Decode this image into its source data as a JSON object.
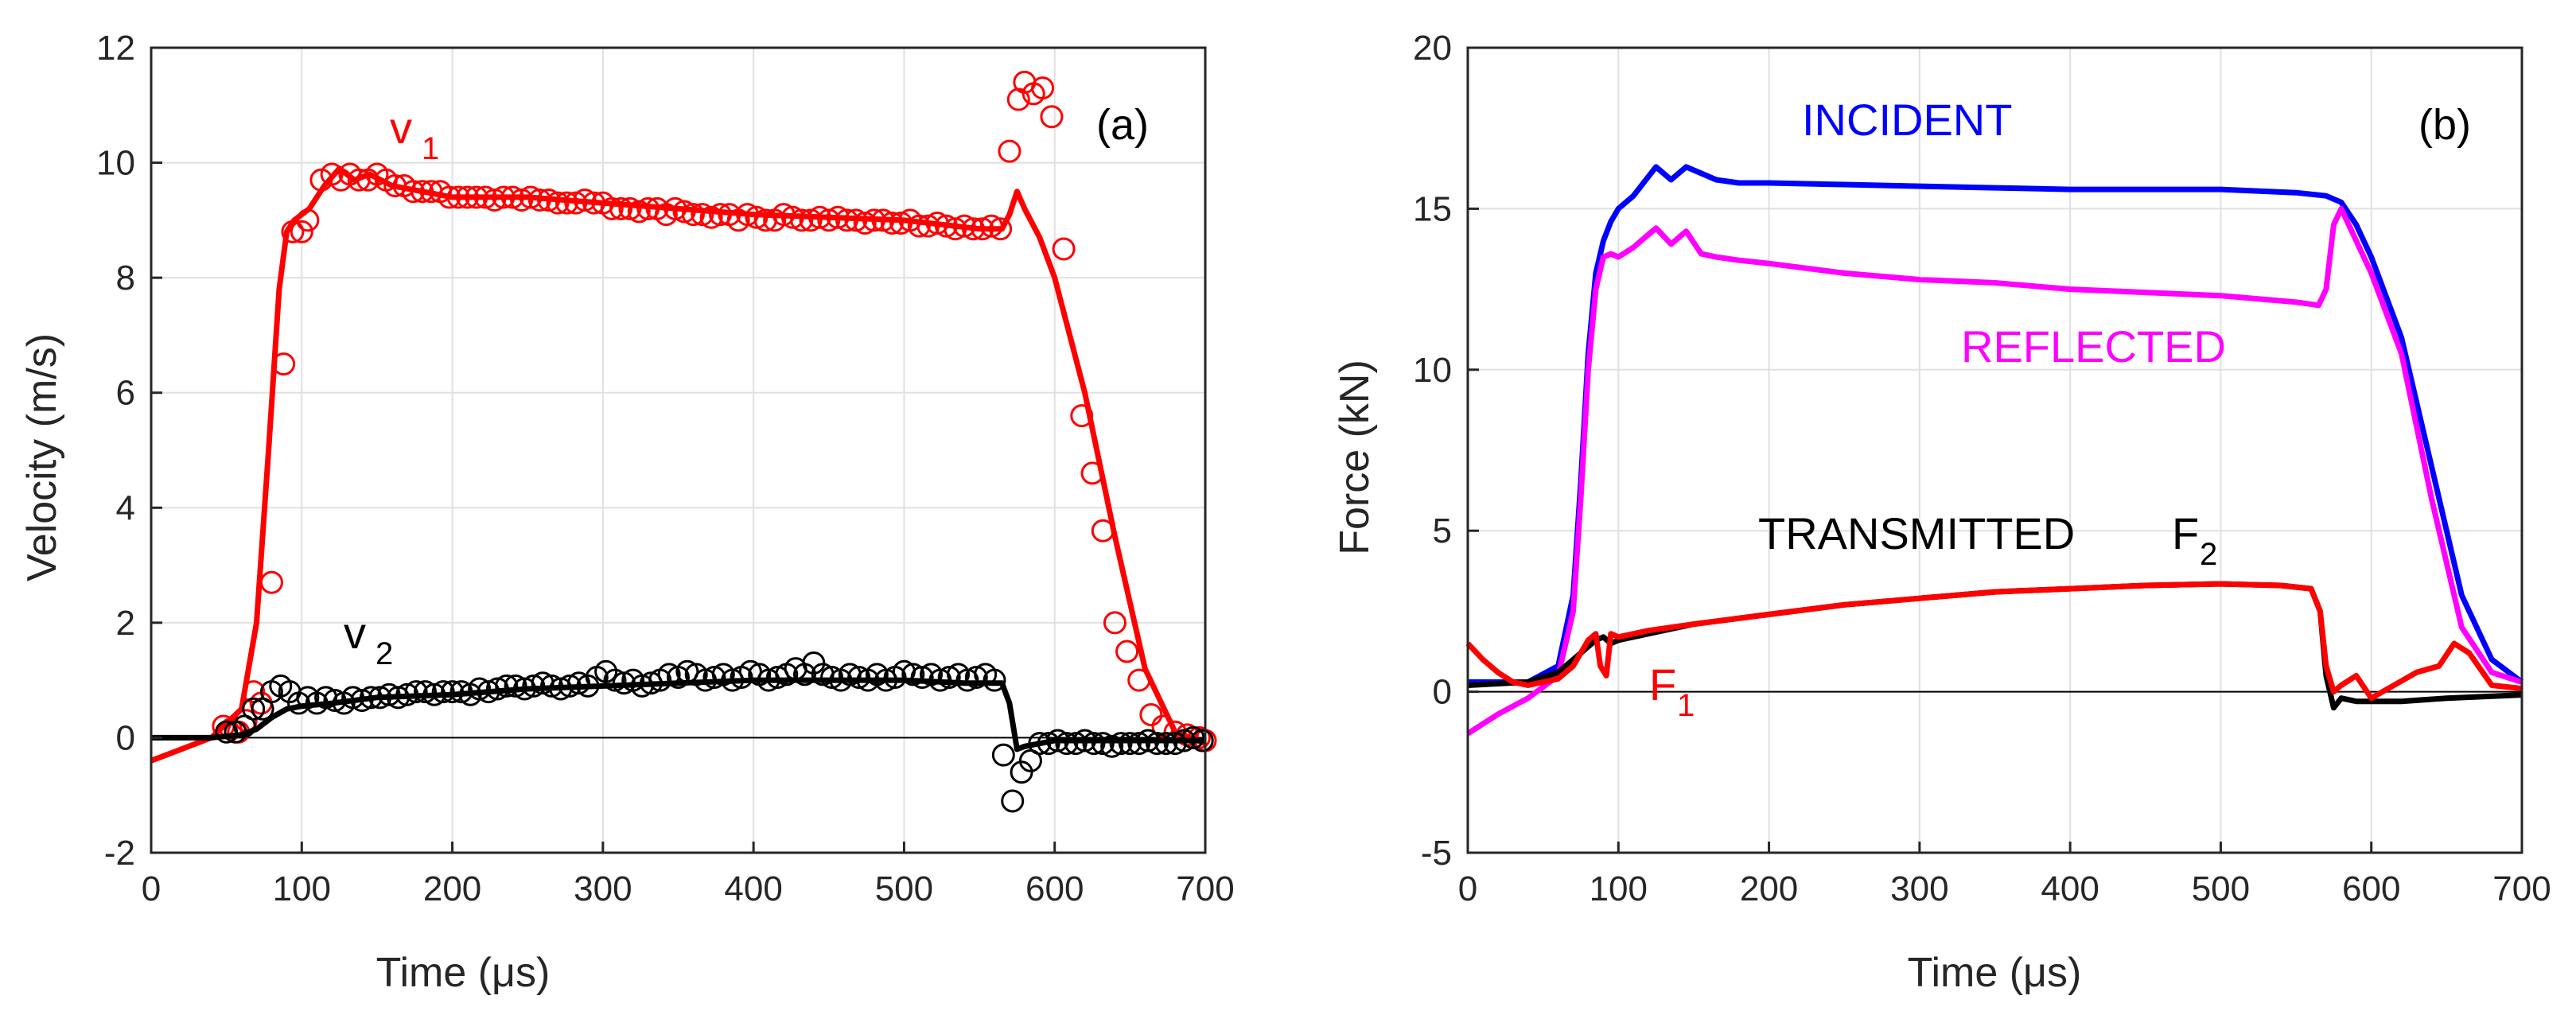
{
  "chart_data": [
    {
      "type": "line",
      "panel_label": "(a)",
      "xlabel": "Time (μs)",
      "ylabel": "Velocity (m/s)",
      "xlim": [
        0,
        700
      ],
      "ylim": [
        -2,
        12
      ],
      "xticks": [
        0,
        100,
        200,
        300,
        400,
        500,
        600,
        700
      ],
      "yticks": [
        -2,
        0,
        2,
        4,
        6,
        8,
        10,
        12
      ],
      "grid": true,
      "series": [
        {
          "label_main": "v",
          "label_sub": "1",
          "color": "#ff0000",
          "style": "line",
          "x": [
            0,
            20,
            40,
            60,
            70,
            78,
            85,
            90,
            95,
            105,
            115,
            125,
            135,
            145,
            160,
            180,
            200,
            250,
            300,
            350,
            400,
            450,
            500,
            550,
            565,
            570,
            575,
            580,
            590,
            600,
            620,
            640,
            660,
            680,
            690,
            700
          ],
          "y": [
            -0.4,
            -0.2,
            0.0,
            0.5,
            2.0,
            5.0,
            7.8,
            8.8,
            9.0,
            9.2,
            9.6,
            9.9,
            9.7,
            9.8,
            9.6,
            9.5,
            9.4,
            9.4,
            9.3,
            9.2,
            9.1,
            9.05,
            9.0,
            8.85,
            8.85,
            9.1,
            9.5,
            9.2,
            8.7,
            8.0,
            6.0,
            3.5,
            1.2,
            0.1,
            0.0,
            -0.1
          ]
        },
        {
          "label_main": "",
          "label_sub": "",
          "color": "#ff0000",
          "style": "markers",
          "x": [
            48,
            53,
            58,
            63,
            68,
            73,
            80,
            88,
            94,
            100,
            104,
            113,
            120,
            126,
            132,
            138,
            144,
            150,
            156,
            162,
            168,
            174,
            180,
            186,
            192,
            198,
            204,
            210,
            216,
            222,
            228,
            234,
            240,
            246,
            252,
            258,
            264,
            270,
            276,
            282,
            288,
            294,
            300,
            306,
            312,
            318,
            324,
            330,
            336,
            342,
            348,
            354,
            360,
            366,
            372,
            378,
            384,
            390,
            396,
            402,
            408,
            414,
            420,
            426,
            432,
            438,
            444,
            450,
            456,
            462,
            468,
            474,
            480,
            486,
            492,
            498,
            504,
            510,
            516,
            522,
            528,
            534,
            540,
            546,
            552,
            558,
            564,
            570,
            576,
            580,
            586,
            592,
            598,
            606,
            618,
            625,
            632,
            640,
            648,
            656,
            664,
            672,
            680,
            688,
            696,
            700
          ],
          "y": [
            0.2,
            0.15,
            0.1,
            0.3,
            0.8,
            0.6,
            2.7,
            6.5,
            8.8,
            8.8,
            9.0,
            9.7,
            9.8,
            9.7,
            9.8,
            9.7,
            9.7,
            9.8,
            9.7,
            9.6,
            9.6,
            9.5,
            9.5,
            9.5,
            9.5,
            9.4,
            9.4,
            9.4,
            9.4,
            9.4,
            9.35,
            9.4,
            9.4,
            9.35,
            9.4,
            9.35,
            9.35,
            9.3,
            9.3,
            9.3,
            9.35,
            9.3,
            9.3,
            9.2,
            9.2,
            9.2,
            9.15,
            9.2,
            9.2,
            9.1,
            9.2,
            9.15,
            9.1,
            9.1,
            9.05,
            9.1,
            9.1,
            9.0,
            9.1,
            9.05,
            9.0,
            9.0,
            9.1,
            9.05,
            9.0,
            9.0,
            9.05,
            9.0,
            9.05,
            9.0,
            9.0,
            8.95,
            9.0,
            9.0,
            8.95,
            8.95,
            9.0,
            8.9,
            8.9,
            8.95,
            8.9,
            8.85,
            8.9,
            8.85,
            8.85,
            8.9,
            8.85,
            10.2,
            11.1,
            11.4,
            11.2,
            11.3,
            10.8,
            8.5,
            5.6,
            4.6,
            3.6,
            2.0,
            1.5,
            1.0,
            0.4,
            0.2,
            0.1,
            0.05,
            0.0,
            -0.05
          ]
        },
        {
          "label_main": "v",
          "label_sub": "2",
          "color": "#000000",
          "style": "line",
          "x": [
            0,
            40,
            60,
            70,
            80,
            90,
            100,
            120,
            150,
            200,
            250,
            300,
            350,
            400,
            450,
            500,
            540,
            565,
            570,
            575,
            580,
            590,
            600,
            650,
            700
          ],
          "y": [
            0.0,
            0.0,
            0.05,
            0.15,
            0.35,
            0.5,
            0.55,
            0.6,
            0.7,
            0.75,
            0.85,
            0.9,
            0.95,
            1.0,
            1.0,
            1.0,
            0.95,
            0.95,
            0.6,
            -0.2,
            -0.15,
            -0.1,
            -0.05,
            -0.05,
            -0.05
          ]
        },
        {
          "label_main": "",
          "label_sub": "",
          "color": "#000000",
          "style": "markers",
          "x": [
            50,
            56,
            62,
            68,
            74,
            80,
            86,
            92,
            98,
            104,
            110,
            116,
            122,
            128,
            134,
            140,
            146,
            152,
            158,
            164,
            170,
            176,
            182,
            188,
            194,
            200,
            206,
            212,
            218,
            224,
            230,
            236,
            242,
            248,
            254,
            260,
            266,
            272,
            278,
            284,
            290,
            296,
            302,
            308,
            314,
            320,
            326,
            332,
            338,
            344,
            350,
            356,
            362,
            368,
            374,
            380,
            386,
            392,
            398,
            404,
            410,
            416,
            422,
            428,
            434,
            440,
            446,
            452,
            458,
            464,
            470,
            476,
            482,
            488,
            494,
            500,
            506,
            512,
            518,
            524,
            530,
            536,
            542,
            548,
            554,
            560,
            566,
            572,
            578,
            584,
            590,
            596,
            602,
            608,
            614,
            620,
            626,
            632,
            638,
            644,
            650,
            656,
            662,
            668,
            674,
            680,
            686,
            692,
            698
          ],
          "y": [
            0.1,
            0.1,
            0.2,
            0.5,
            0.5,
            0.8,
            0.9,
            0.8,
            0.6,
            0.7,
            0.6,
            0.7,
            0.65,
            0.6,
            0.7,
            0.65,
            0.7,
            0.7,
            0.75,
            0.7,
            0.75,
            0.8,
            0.8,
            0.75,
            0.8,
            0.8,
            0.8,
            0.75,
            0.85,
            0.8,
            0.85,
            0.9,
            0.9,
            0.85,
            0.9,
            0.95,
            0.9,
            0.85,
            0.9,
            0.95,
            0.9,
            1.05,
            1.15,
            1.0,
            0.95,
            1.0,
            0.9,
            0.95,
            1.0,
            1.1,
            1.05,
            1.15,
            1.1,
            1.0,
            1.05,
            1.1,
            1.0,
            1.05,
            1.15,
            1.1,
            1.0,
            1.05,
            1.1,
            1.2,
            1.1,
            1.3,
            1.1,
            1.05,
            1.0,
            1.1,
            1.05,
            1.0,
            1.1,
            1.0,
            1.05,
            1.15,
            1.1,
            1.05,
            1.1,
            1.0,
            1.05,
            1.1,
            1.0,
            1.05,
            1.1,
            1.0,
            -0.3,
            -1.1,
            -0.6,
            -0.4,
            -0.1,
            -0.1,
            -0.05,
            -0.1,
            -0.1,
            -0.05,
            -0.1,
            -0.1,
            -0.15,
            -0.1,
            -0.1,
            -0.1,
            -0.05,
            -0.1,
            -0.1,
            -0.1,
            -0.05,
            0.0,
            -0.05
          ]
        }
      ]
    },
    {
      "type": "line",
      "panel_label": "(b)",
      "xlabel": "Time (μs)",
      "ylabel": "Force (kN)",
      "xlim": [
        0,
        700
      ],
      "ylim": [
        -5,
        20
      ],
      "xticks": [
        0,
        100,
        200,
        300,
        400,
        500,
        600,
        700
      ],
      "yticks": [
        -5,
        0,
        5,
        10,
        15,
        20
      ],
      "grid": true,
      "series": [
        {
          "label_main": "INCIDENT",
          "label_sub": "",
          "color": "#0000ff",
          "style": "line",
          "x": [
            0,
            40,
            60,
            70,
            75,
            80,
            85,
            90,
            95,
            100,
            110,
            120,
            125,
            135,
            145,
            155,
            165,
            180,
            200,
            250,
            300,
            350,
            400,
            450,
            500,
            550,
            570,
            580,
            590,
            600,
            620,
            640,
            660,
            680,
            700
          ],
          "y": [
            0.3,
            0.3,
            0.8,
            3.0,
            6.5,
            10.5,
            13.0,
            14.0,
            14.6,
            15.0,
            15.4,
            16.0,
            16.3,
            15.9,
            16.3,
            16.1,
            15.9,
            15.8,
            15.8,
            15.75,
            15.7,
            15.65,
            15.6,
            15.6,
            15.6,
            15.5,
            15.4,
            15.2,
            14.5,
            13.5,
            11.0,
            7.0,
            3.0,
            1.0,
            0.3
          ]
        },
        {
          "label_main": "REFLECTED",
          "label_sub": "",
          "color": "#ff00ff",
          "style": "line",
          "x": [
            0,
            20,
            40,
            60,
            70,
            75,
            80,
            85,
            90,
            95,
            100,
            110,
            120,
            125,
            135,
            145,
            155,
            165,
            180,
            200,
            250,
            300,
            350,
            400,
            450,
            500,
            550,
            565,
            570,
            575,
            580,
            590,
            600,
            620,
            640,
            660,
            680,
            700
          ],
          "y": [
            -1.3,
            -0.7,
            -0.2,
            0.5,
            2.5,
            6.0,
            10.0,
            12.5,
            13.5,
            13.6,
            13.5,
            13.8,
            14.2,
            14.4,
            13.9,
            14.3,
            13.6,
            13.5,
            13.4,
            13.3,
            13.0,
            12.8,
            12.7,
            12.5,
            12.4,
            12.3,
            12.1,
            12.0,
            12.5,
            14.5,
            15.0,
            14.0,
            13.0,
            10.5,
            6.0,
            2.0,
            0.6,
            0.3
          ]
        },
        {
          "label_main": "TRANSMITTED",
          "label_sub": "",
          "color": "#000000",
          "style": "line",
          "x": [
            0,
            40,
            60,
            70,
            80,
            85,
            90,
            95,
            100,
            120,
            150,
            200,
            250,
            300,
            350,
            400,
            450,
            500,
            540,
            560,
            566,
            570,
            575,
            580,
            590,
            620,
            650,
            700
          ],
          "y": [
            0.2,
            0.3,
            0.6,
            1.0,
            1.4,
            1.6,
            1.7,
            1.5,
            1.6,
            1.8,
            2.1,
            2.4,
            2.7,
            2.9,
            3.1,
            3.2,
            3.3,
            3.35,
            3.3,
            3.2,
            2.5,
            0.5,
            -0.5,
            -0.2,
            -0.3,
            -0.3,
            -0.2,
            -0.1
          ]
        },
        {
          "label_main": "F",
          "label_sub": "1",
          "color": "#ff0000",
          "style": "line",
          "x": [
            0,
            10,
            20,
            30,
            40,
            50,
            60,
            70,
            80,
            85,
            88,
            92,
            95,
            100,
            120,
            150,
            200,
            250,
            300,
            350,
            400,
            450,
            500,
            540,
            560,
            566,
            570,
            575,
            580,
            590,
            600,
            615,
            630,
            645,
            655,
            665,
            680,
            700
          ],
          "y": [
            1.5,
            1.0,
            0.6,
            0.3,
            0.2,
            0.3,
            0.4,
            0.8,
            1.6,
            1.8,
            0.8,
            0.5,
            1.8,
            1.7,
            1.9,
            2.1,
            2.4,
            2.7,
            2.9,
            3.1,
            3.2,
            3.3,
            3.35,
            3.3,
            3.2,
            2.5,
            0.8,
            0.0,
            0.2,
            0.5,
            -0.2,
            0.2,
            0.6,
            0.8,
            1.5,
            1.2,
            0.2,
            0.1
          ]
        },
        {
          "label_main": "F",
          "label_sub": "2",
          "color": "#000000",
          "style": "label-only",
          "x": [],
          "y": []
        }
      ]
    }
  ]
}
